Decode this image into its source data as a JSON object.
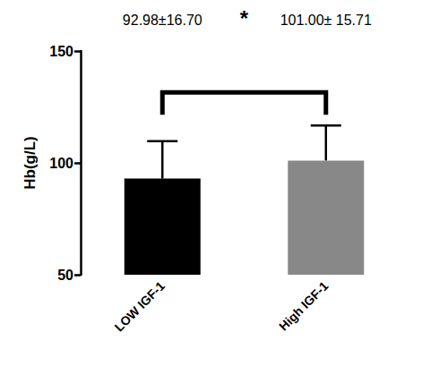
{
  "chart_data": {
    "type": "bar",
    "categories": [
      "LOW IGF-1",
      "High IGF-1"
    ],
    "values": [
      92.98,
      101.0
    ],
    "errors": [
      16.7,
      15.71
    ],
    "colors": [
      "#000000",
      "#888888"
    ],
    "ylabel": "Hb(g/L)",
    "ylim": [
      50,
      150
    ],
    "yticks": [
      50,
      100,
      150
    ],
    "grid": false,
    "annotations": [
      "92.98±16.70",
      "101.00± 15.71"
    ],
    "significance": "*"
  }
}
